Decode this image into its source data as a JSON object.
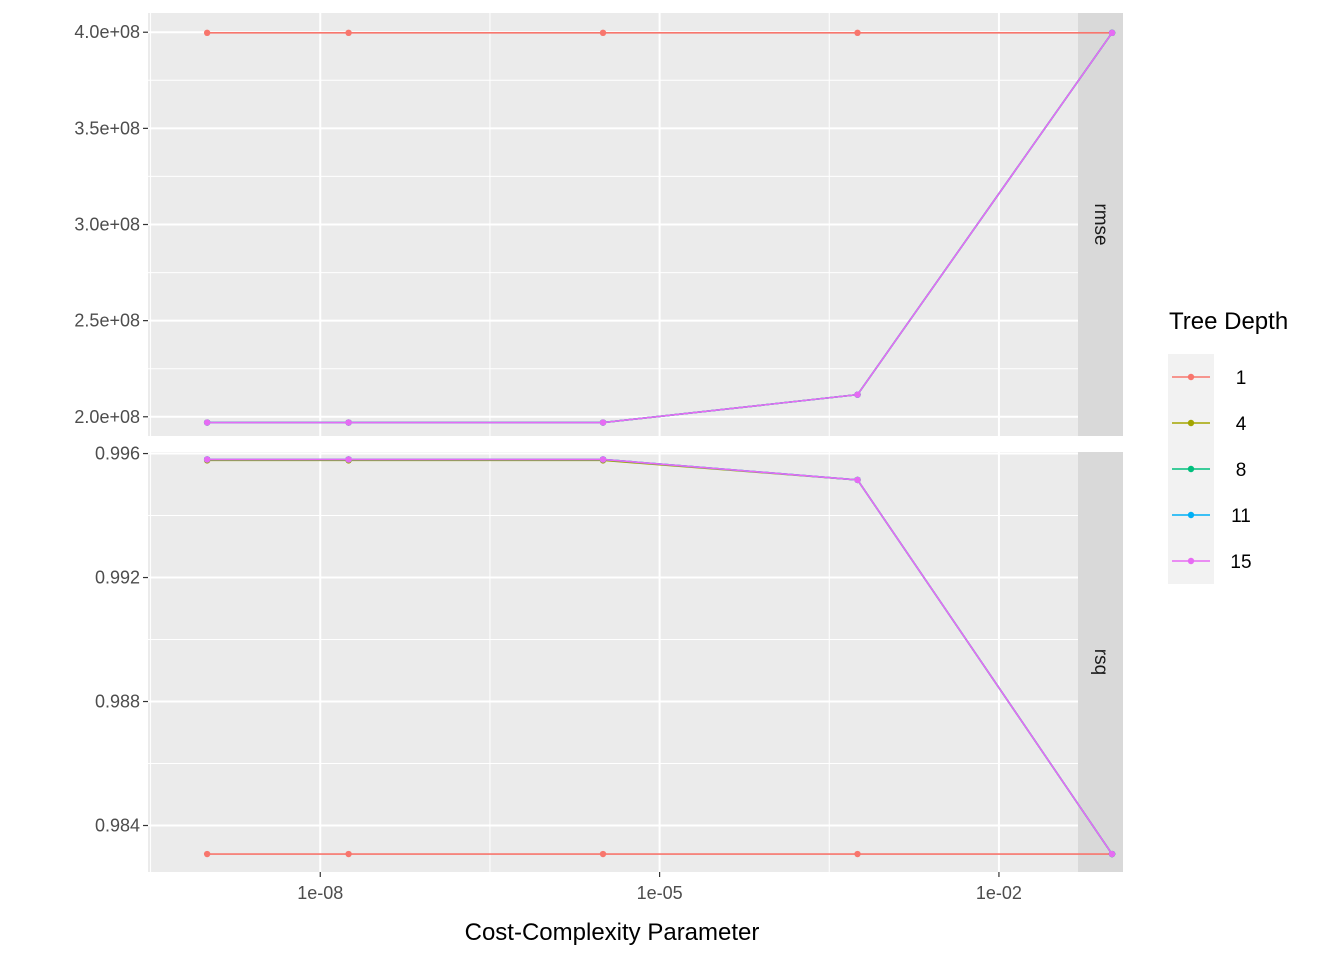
{
  "chart_data": {
    "type": "line",
    "xlabel": "Cost-Complexity Parameter",
    "x_scale": "log10",
    "x_ticks": [
      {
        "value": 1e-08,
        "label": "1e-08"
      },
      {
        "value": 1e-05,
        "label": "1e-05"
      },
      {
        "value": 0.01,
        "label": "1e-02"
      }
    ],
    "xlim": [
      3e-10,
      0.05
    ],
    "x": [
      1e-09,
      1.78e-08,
      3.16e-06,
      0.000562,
      0.1
    ],
    "legend": {
      "title": "Tree Depth",
      "position": "right",
      "entries": [
        {
          "label": "1",
          "color": "#F8766D"
        },
        {
          "label": "4",
          "color": "#A3A500"
        },
        {
          "label": "8",
          "color": "#00BF7D"
        },
        {
          "label": "11",
          "color": "#00B0F6"
        },
        {
          "label": "15",
          "color": "#E76BF3"
        }
      ]
    },
    "grid": true,
    "panels": [
      {
        "strip": "rmse",
        "ylim": [
          190000000,
          410000000
        ],
        "y_ticks": [
          {
            "value": 200000000,
            "label": "2.0e+08"
          },
          {
            "value": 250000000,
            "label": "2.5e+08"
          },
          {
            "value": 300000000,
            "label": "3.0e+08"
          },
          {
            "value": 350000000,
            "label": "3.5e+08"
          },
          {
            "value": 400000000,
            "label": "4.0e+08"
          }
        ],
        "series": [
          {
            "name": "1",
            "color": "#F8766D",
            "values": [
              399700000,
              399700000,
              399700000,
              399700000,
              399700000
            ]
          },
          {
            "name": "4",
            "color": "#A3A500",
            "values": [
              197000000,
              197000000,
              197000000,
              211500000,
              399700000
            ]
          },
          {
            "name": "8",
            "color": "#00BF7D",
            "values": [
              197000000,
              197000000,
              197000000,
              211500000,
              399700000
            ]
          },
          {
            "name": "11",
            "color": "#00B0F6",
            "values": [
              197000000,
              197000000,
              197000000,
              211500000,
              399700000
            ]
          },
          {
            "name": "15",
            "color": "#E76BF3",
            "values": [
              197000000,
              197000000,
              197000000,
              211500000,
              399700000
            ]
          }
        ]
      },
      {
        "strip": "rsq",
        "ylim": [
          0.9825,
          0.99605
        ],
        "y_ticks": [
          {
            "value": 0.984,
            "label": "0.984"
          },
          {
            "value": 0.988,
            "label": "0.988"
          },
          {
            "value": 0.992,
            "label": "0.992"
          },
          {
            "value": 0.996,
            "label": "0.996"
          }
        ],
        "series": [
          {
            "name": "1",
            "color": "#F8766D",
            "values": [
              0.98308,
              0.98308,
              0.98308,
              0.98308,
              0.98308
            ]
          },
          {
            "name": "4",
            "color": "#A3A500",
            "values": [
              0.99578,
              0.99578,
              0.99578,
              0.99515,
              0.98308
            ]
          },
          {
            "name": "8",
            "color": "#00BF7D",
            "values": [
              0.99581,
              0.99581,
              0.99581,
              0.99515,
              0.98308
            ]
          },
          {
            "name": "11",
            "color": "#00B0F6",
            "values": [
              0.99581,
              0.99581,
              0.99581,
              0.99515,
              0.98308
            ]
          },
          {
            "name": "15",
            "color": "#E76BF3",
            "values": [
              0.99581,
              0.99581,
              0.99581,
              0.99515,
              0.98308
            ]
          }
        ]
      }
    ]
  }
}
